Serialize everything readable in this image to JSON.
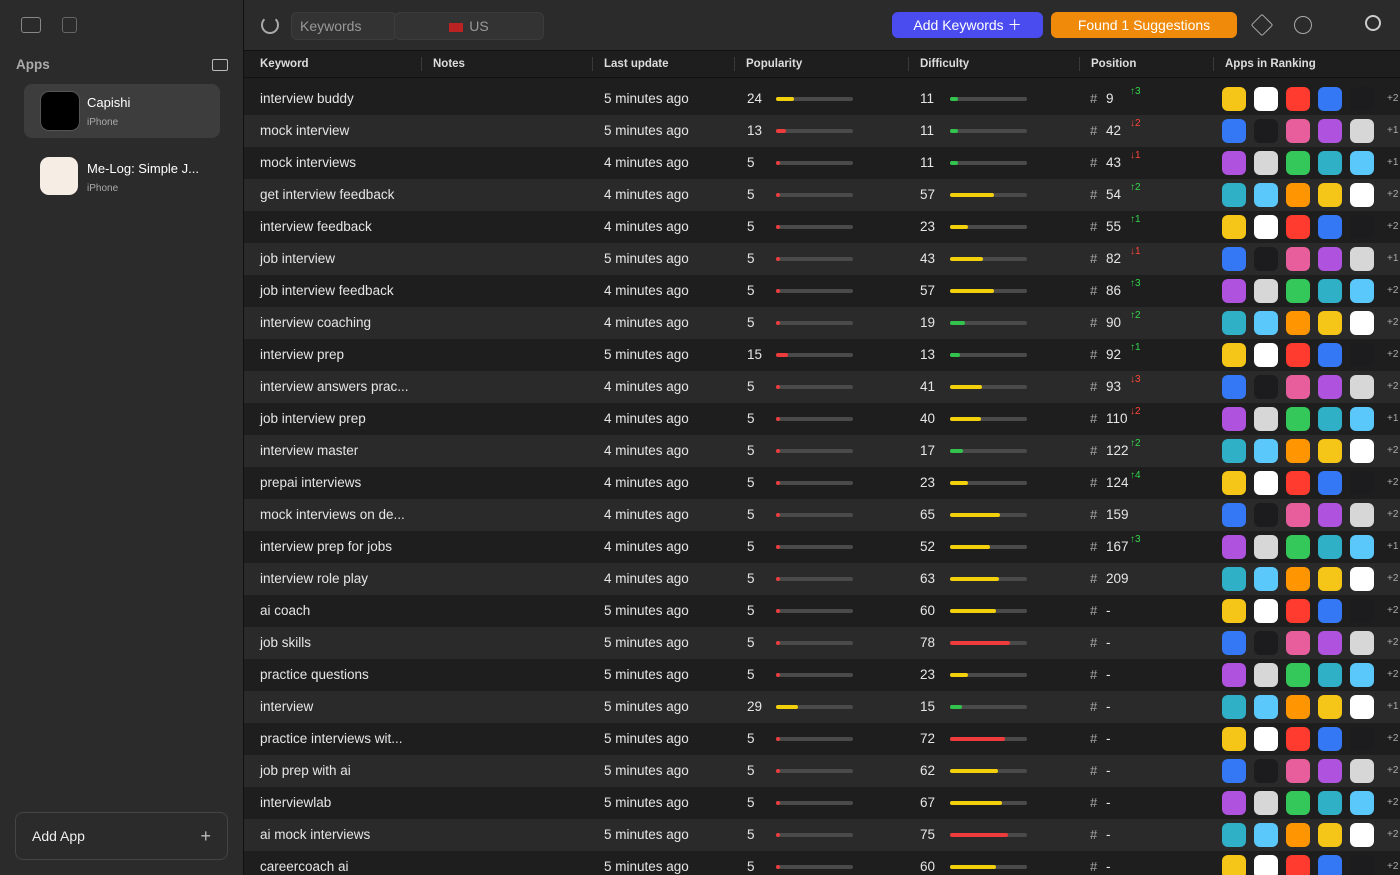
{
  "sidebar": {
    "title": "Apps",
    "apps": [
      {
        "name": "Capishi",
        "platform": "iPhone"
      },
      {
        "name": "Me-Log: Simple J...",
        "platform": "iPhone"
      }
    ],
    "add_button": "Add App"
  },
  "toolbar": {
    "mode": "Keywords",
    "country": "US",
    "add_keywords": "Add Keywords",
    "suggestions": "Found 1 Suggestions"
  },
  "table": {
    "columns": [
      "Keyword",
      "Notes",
      "Last update",
      "Popularity",
      "Difficulty",
      "Position",
      "Apps in Ranking"
    ],
    "rows": [
      {
        "keyword": "interview buddy",
        "last_update": "5 minutes ago",
        "popularity": 24,
        "difficulty": 11,
        "position": 9,
        "change": "↑3",
        "more": "+2"
      },
      {
        "keyword": "mock interview",
        "last_update": "5 minutes ago",
        "popularity": 13,
        "difficulty": 11,
        "position": 42,
        "change": "↓2",
        "more": "+1"
      },
      {
        "keyword": "mock interviews",
        "last_update": "4 minutes ago",
        "popularity": 5,
        "difficulty": 11,
        "position": 43,
        "change": "↓1",
        "more": "+1"
      },
      {
        "keyword": "get interview feedback",
        "last_update": "4 minutes ago",
        "popularity": 5,
        "difficulty": 57,
        "position": 54,
        "change": "↑2",
        "more": "+2"
      },
      {
        "keyword": "interview feedback",
        "last_update": "4 minutes ago",
        "popularity": 5,
        "difficulty": 23,
        "position": 55,
        "change": "↑1",
        "more": "+2"
      },
      {
        "keyword": "job interview",
        "last_update": "5 minutes ago",
        "popularity": 5,
        "difficulty": 43,
        "position": 82,
        "change": "↓1",
        "more": "+1"
      },
      {
        "keyword": "job interview feedback",
        "last_update": "4 minutes ago",
        "popularity": 5,
        "difficulty": 57,
        "position": 86,
        "change": "↑3",
        "more": "+2"
      },
      {
        "keyword": "interview coaching",
        "last_update": "4 minutes ago",
        "popularity": 5,
        "difficulty": 19,
        "position": 90,
        "change": "↑2",
        "more": "+2"
      },
      {
        "keyword": "interview prep",
        "last_update": "5 minutes ago",
        "popularity": 15,
        "difficulty": 13,
        "position": 92,
        "change": "↑1",
        "more": "+2"
      },
      {
        "keyword": "interview answers prac...",
        "last_update": "4 minutes ago",
        "popularity": 5,
        "difficulty": 41,
        "position": 93,
        "change": "↓3",
        "more": "+2"
      },
      {
        "keyword": "job interview prep",
        "last_update": "4 minutes ago",
        "popularity": 5,
        "difficulty": 40,
        "position": 110,
        "change": "↓2",
        "more": "+1"
      },
      {
        "keyword": "interview master",
        "last_update": "4 minutes ago",
        "popularity": 5,
        "difficulty": 17,
        "position": 122,
        "change": "↑2",
        "more": "+2"
      },
      {
        "keyword": "prepai interviews",
        "last_update": "4 minutes ago",
        "popularity": 5,
        "difficulty": 23,
        "position": 124,
        "change": "↑4",
        "more": "+2"
      },
      {
        "keyword": "mock interviews on de...",
        "last_update": "4 minutes ago",
        "popularity": 5,
        "difficulty": 65,
        "position": 159,
        "more": "+2"
      },
      {
        "keyword": "interview prep for jobs",
        "last_update": "4 minutes ago",
        "popularity": 5,
        "difficulty": 52,
        "position": 167,
        "change": "↑3",
        "more": "+1"
      },
      {
        "keyword": "interview role play",
        "last_update": "4 minutes ago",
        "popularity": 5,
        "difficulty": 63,
        "position": 209,
        "more": "+2"
      },
      {
        "keyword": "ai coach",
        "last_update": "5 minutes ago",
        "popularity": 5,
        "difficulty": 60,
        "position": "-",
        "more": "+2"
      },
      {
        "keyword": "job skills",
        "last_update": "5 minutes ago",
        "popularity": 5,
        "difficulty": 78,
        "position": "-",
        "more": "+2"
      },
      {
        "keyword": "practice questions",
        "last_update": "5 minutes ago",
        "popularity": 5,
        "difficulty": 23,
        "position": "-",
        "more": "+2"
      },
      {
        "keyword": "interview",
        "last_update": "5 minutes ago",
        "popularity": 29,
        "difficulty": 15,
        "position": "-",
        "more": "+1"
      },
      {
        "keyword": "practice interviews wit...",
        "last_update": "5 minutes ago",
        "popularity": 5,
        "difficulty": 72,
        "position": "-",
        "more": "+2"
      },
      {
        "keyword": "job prep with ai",
        "last_update": "5 minutes ago",
        "popularity": 5,
        "difficulty": 62,
        "position": "-",
        "more": "+2"
      },
      {
        "keyword": "interviewlab",
        "last_update": "5 minutes ago",
        "popularity": 5,
        "difficulty": 67,
        "position": "-",
        "more": "+2"
      },
      {
        "keyword": "ai mock interviews",
        "last_update": "5 minutes ago",
        "popularity": 5,
        "difficulty": 75,
        "position": "-",
        "more": "+2"
      },
      {
        "keyword": "careercoach ai",
        "last_update": "5 minutes ago",
        "popularity": 5,
        "difficulty": 60,
        "position": "-",
        "more": "+2"
      }
    ]
  }
}
